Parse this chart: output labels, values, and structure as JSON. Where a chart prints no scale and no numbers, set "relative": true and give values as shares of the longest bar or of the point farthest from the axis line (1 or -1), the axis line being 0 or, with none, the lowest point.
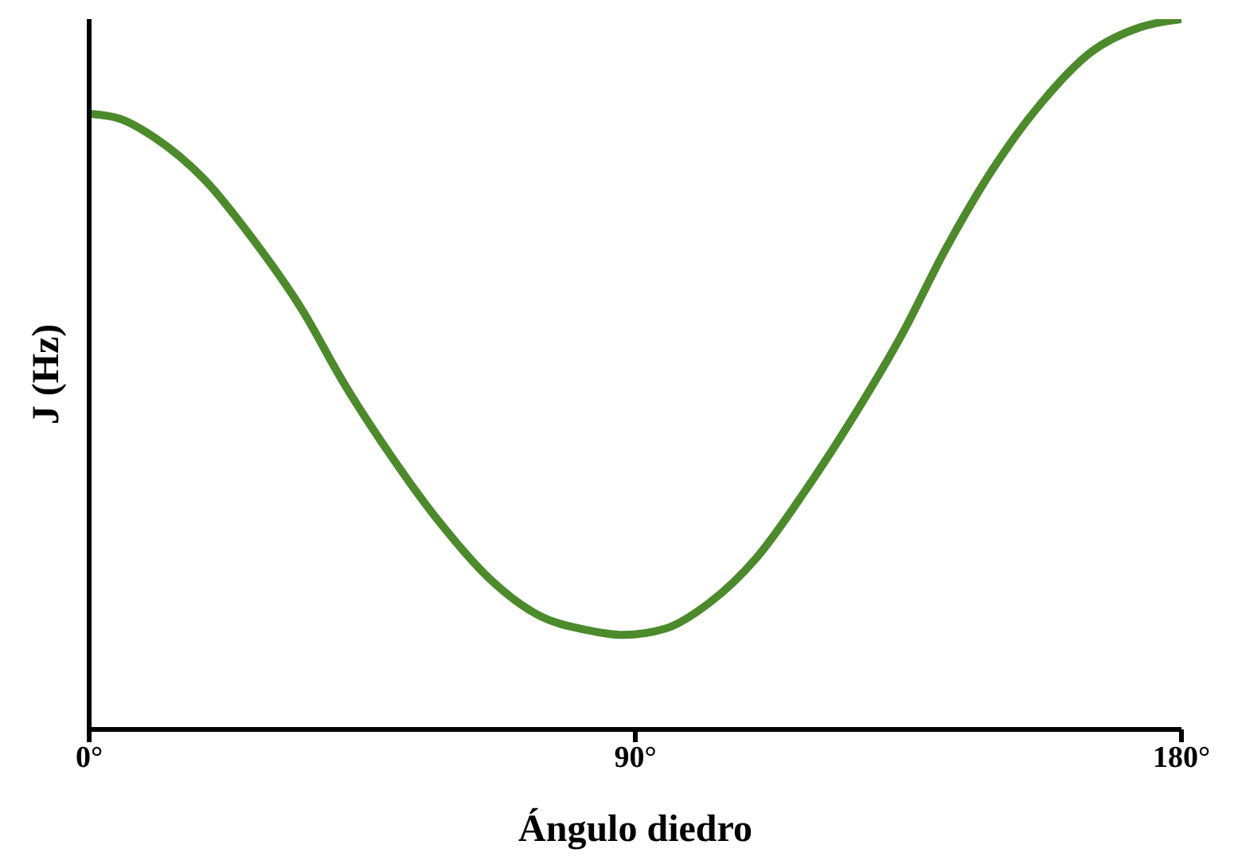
{
  "chart_data": {
    "type": "line",
    "xlabel": "Ángulo diedro",
    "ylabel": "J (Hz)",
    "relative": true,
    "marker": "none",
    "xlim": [
      0,
      180
    ],
    "xticks": [
      {
        "value": 0,
        "label": "0°"
      },
      {
        "value": 90,
        "label": "90°"
      },
      {
        "value": 180,
        "label": "180°"
      }
    ],
    "x": [
      0,
      5,
      11,
      19,
      27,
      35,
      42,
      50,
      58,
      66,
      74,
      82,
      88,
      95,
      102,
      110,
      118,
      126,
      134,
      141,
      149,
      157,
      165,
      173,
      180
    ],
    "series": [
      {
        "color": "#4c8a2c",
        "values": [
          0.867,
          0.86,
          0.832,
          0.774,
          0.69,
          0.592,
          0.487,
          0.382,
          0.289,
          0.212,
          0.161,
          0.14,
          0.133,
          0.142,
          0.177,
          0.242,
          0.336,
          0.441,
          0.557,
          0.674,
          0.79,
          0.883,
          0.953,
          0.988,
          1
        ]
      }
    ]
  }
}
